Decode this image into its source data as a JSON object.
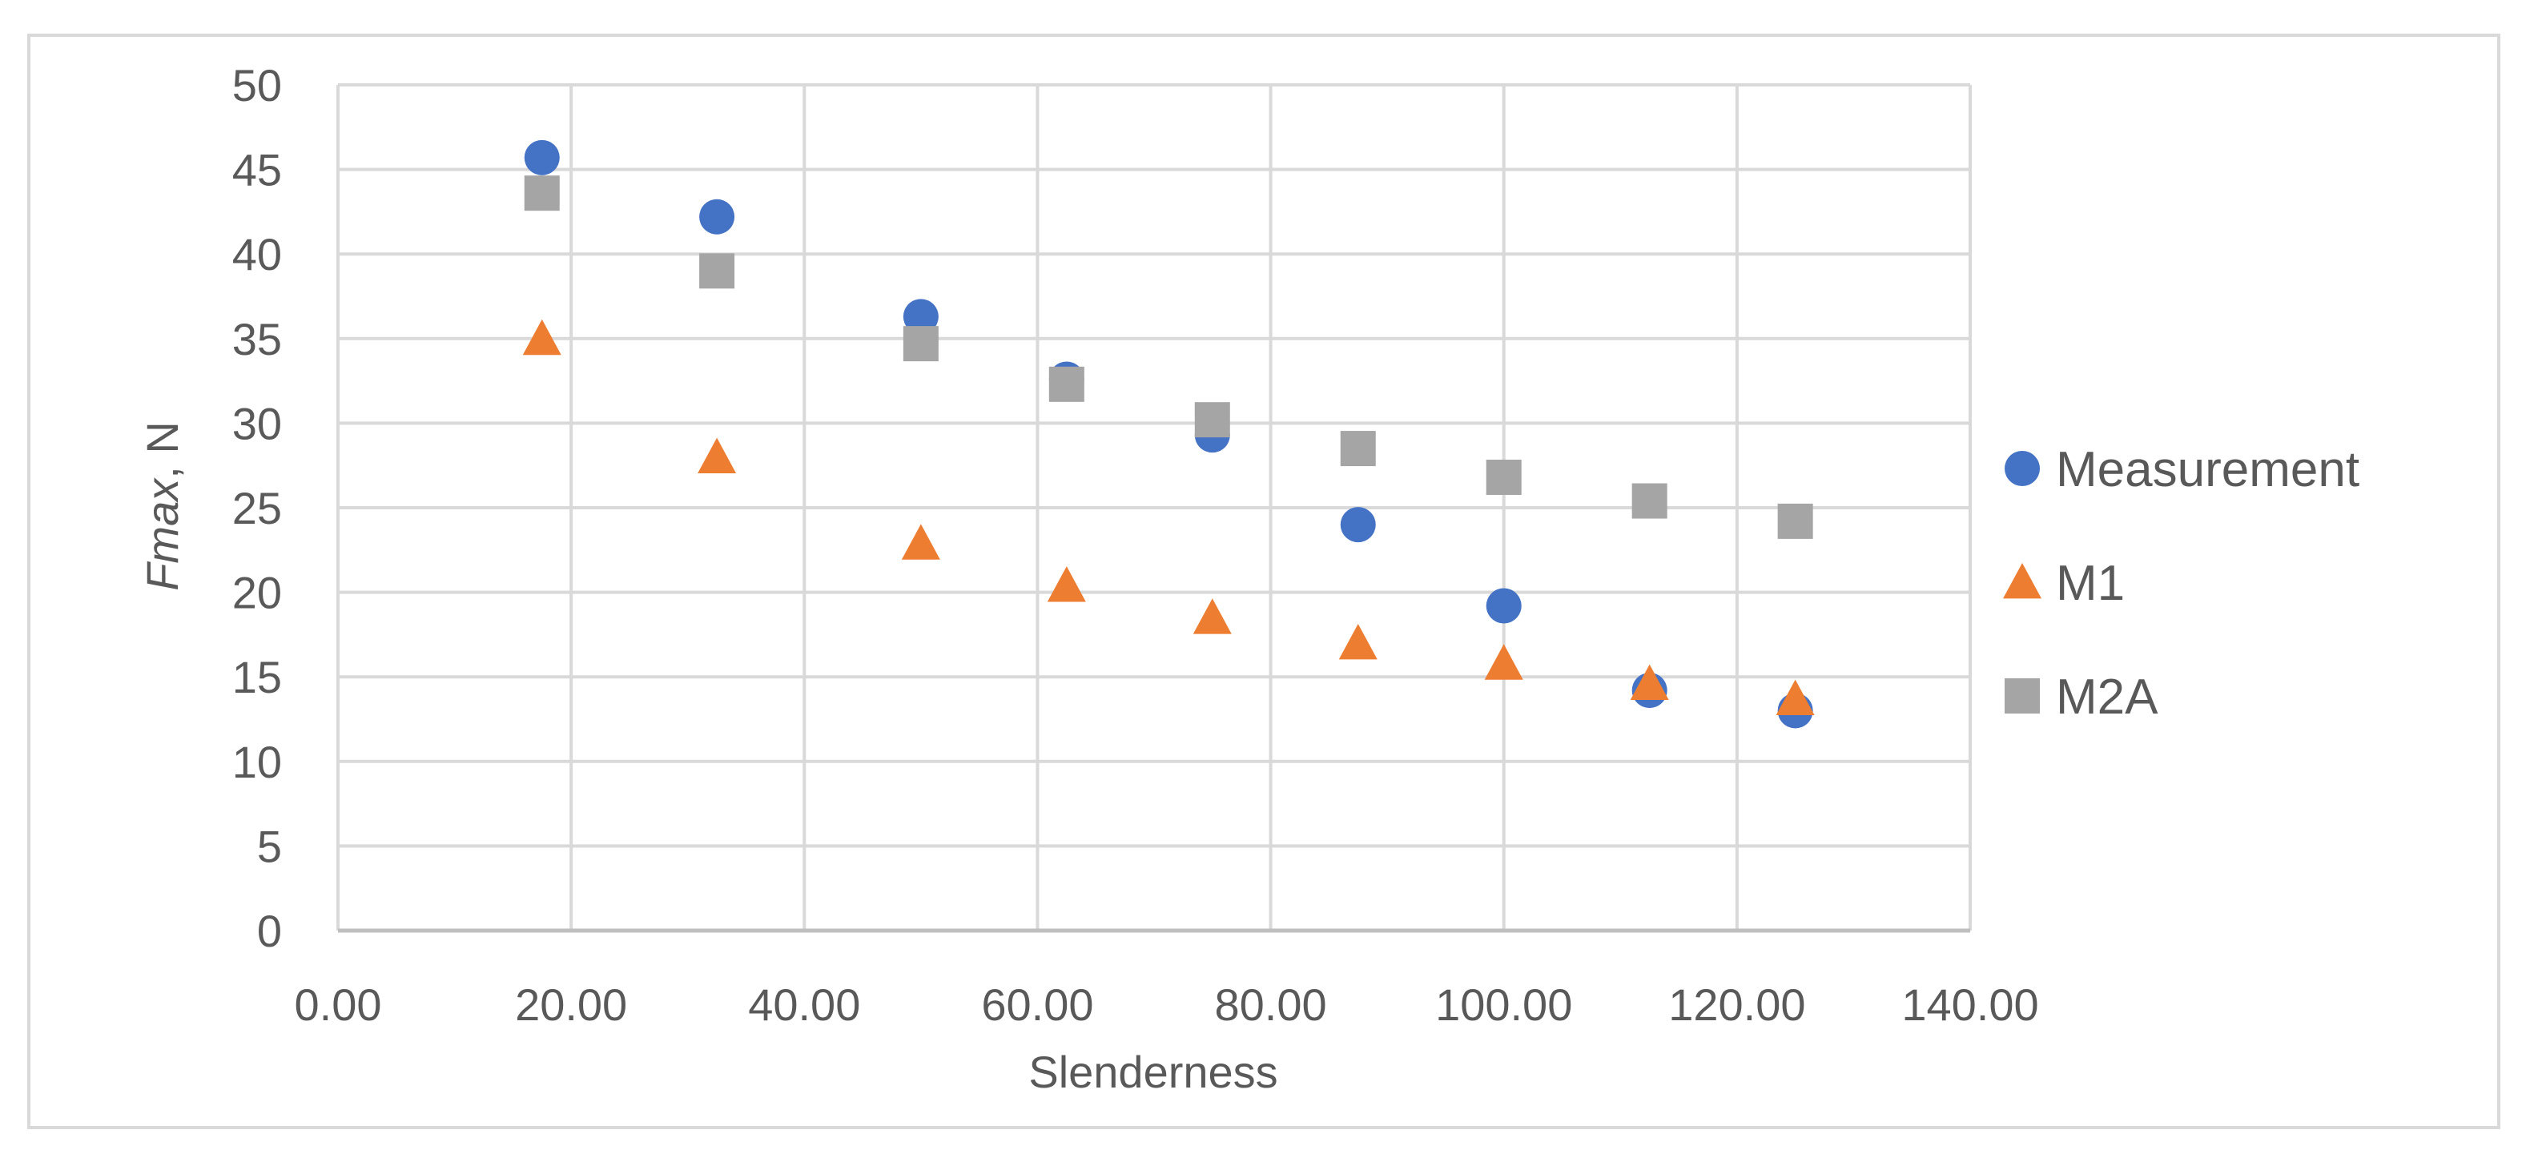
{
  "chart_data": {
    "type": "scatter",
    "title": "",
    "xlabel": "Slenderness",
    "ylabel_italic": "Fmax",
    "ylabel_rest": ", N",
    "xlim": [
      0,
      140
    ],
    "ylim": [
      0,
      50
    ],
    "x_ticks": [
      "0.00",
      "20.00",
      "40.00",
      "60.00",
      "80.00",
      "100.00",
      "120.00",
      "140.00"
    ],
    "y_ticks": [
      "0",
      "5",
      "10",
      "15",
      "20",
      "25",
      "30",
      "35",
      "40",
      "45",
      "50"
    ],
    "grid": true,
    "legend_position": "right",
    "series": [
      {
        "name": "Measurement",
        "marker": "circle",
        "color": "#4472C4",
        "x": [
          17.5,
          32.5,
          50.0,
          62.5,
          75.0,
          87.5,
          100.0,
          112.5,
          125.0
        ],
        "y": [
          45.7,
          42.2,
          36.3,
          32.6,
          29.3,
          24.0,
          19.2,
          14.2,
          13.0
        ]
      },
      {
        "name": "M1",
        "marker": "triangle",
        "color": "#ED7D31",
        "x": [
          17.5,
          32.5,
          50.0,
          62.5,
          75.0,
          87.5,
          100.0,
          112.5,
          125.0
        ],
        "y": [
          35.0,
          28.0,
          22.9,
          20.4,
          18.5,
          17.0,
          15.8,
          14.6,
          13.7
        ]
      },
      {
        "name": "M2A",
        "marker": "square",
        "color": "#A5A5A5",
        "x": [
          17.5,
          32.5,
          50.0,
          62.5,
          75.0,
          87.5,
          100.0,
          112.5,
          125.0
        ],
        "y": [
          43.6,
          39.0,
          34.7,
          32.3,
          30.2,
          28.5,
          26.8,
          25.4,
          24.2
        ]
      }
    ]
  }
}
